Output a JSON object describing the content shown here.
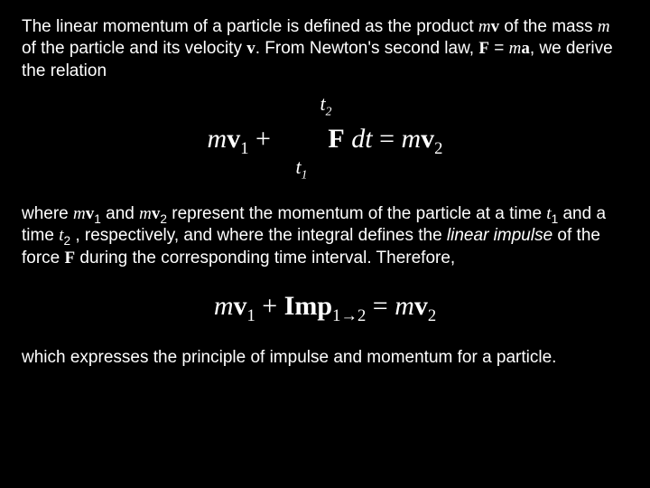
{
  "colors": {
    "background": "#000000",
    "text": "#ffffff"
  },
  "para1": {
    "s1": "The linear momentum of a particle is defined as the product ",
    "mv_m": "m",
    "mv_v": "v",
    "s2": " of the mass ",
    "m": "m",
    "s3": " of the particle and its velocity ",
    "v": "v",
    "s4": ". From Newton's second law, ",
    "F": "F",
    "eq": " = ",
    "m2": "m",
    "a": "a",
    "s5": ", we derive the relation"
  },
  "eq1": {
    "upper_t": "t",
    "upper_sub": "2",
    "lower_t": "t",
    "lower_sub": "1",
    "lhs_m": "m",
    "lhs_v": "v",
    "lhs_sub": "1",
    "plus": " + ",
    "F": "F",
    "sp": " ",
    "dt": "dt",
    "eq": " = ",
    "rhs_m": "m",
    "rhs_v": "v",
    "rhs_sub": "2"
  },
  "para2": {
    "s1": "where ",
    "m1": "m",
    "v1": "v",
    "sub1": "1",
    "and1": " and ",
    "m2": "m",
    "v2": "v",
    "sub2": "2",
    "s2": " represent the momentum of the particle at a time ",
    "t1": "t",
    "t1sub": "1",
    "and2": " and a time ",
    "t2": "t",
    "t2sub": "2",
    "s3": " , respectively, and where the integral defines the ",
    "impulse": "linear impulse",
    "s4": " of the force ",
    "F": "F",
    "s5": " during the corresponding time interval. Therefore,"
  },
  "eq2": {
    "m1": "m",
    "v1": "v",
    "sub1": "1",
    "plus": " + ",
    "imp": "Imp",
    "isub1": "1",
    "arrow": "→",
    "isub2": "2",
    "eq": " = ",
    "m2": "m",
    "v2": "v",
    "sub2": "2"
  },
  "para3": {
    "t1": "which expresses the principle of impulse and momentum for a particle."
  }
}
